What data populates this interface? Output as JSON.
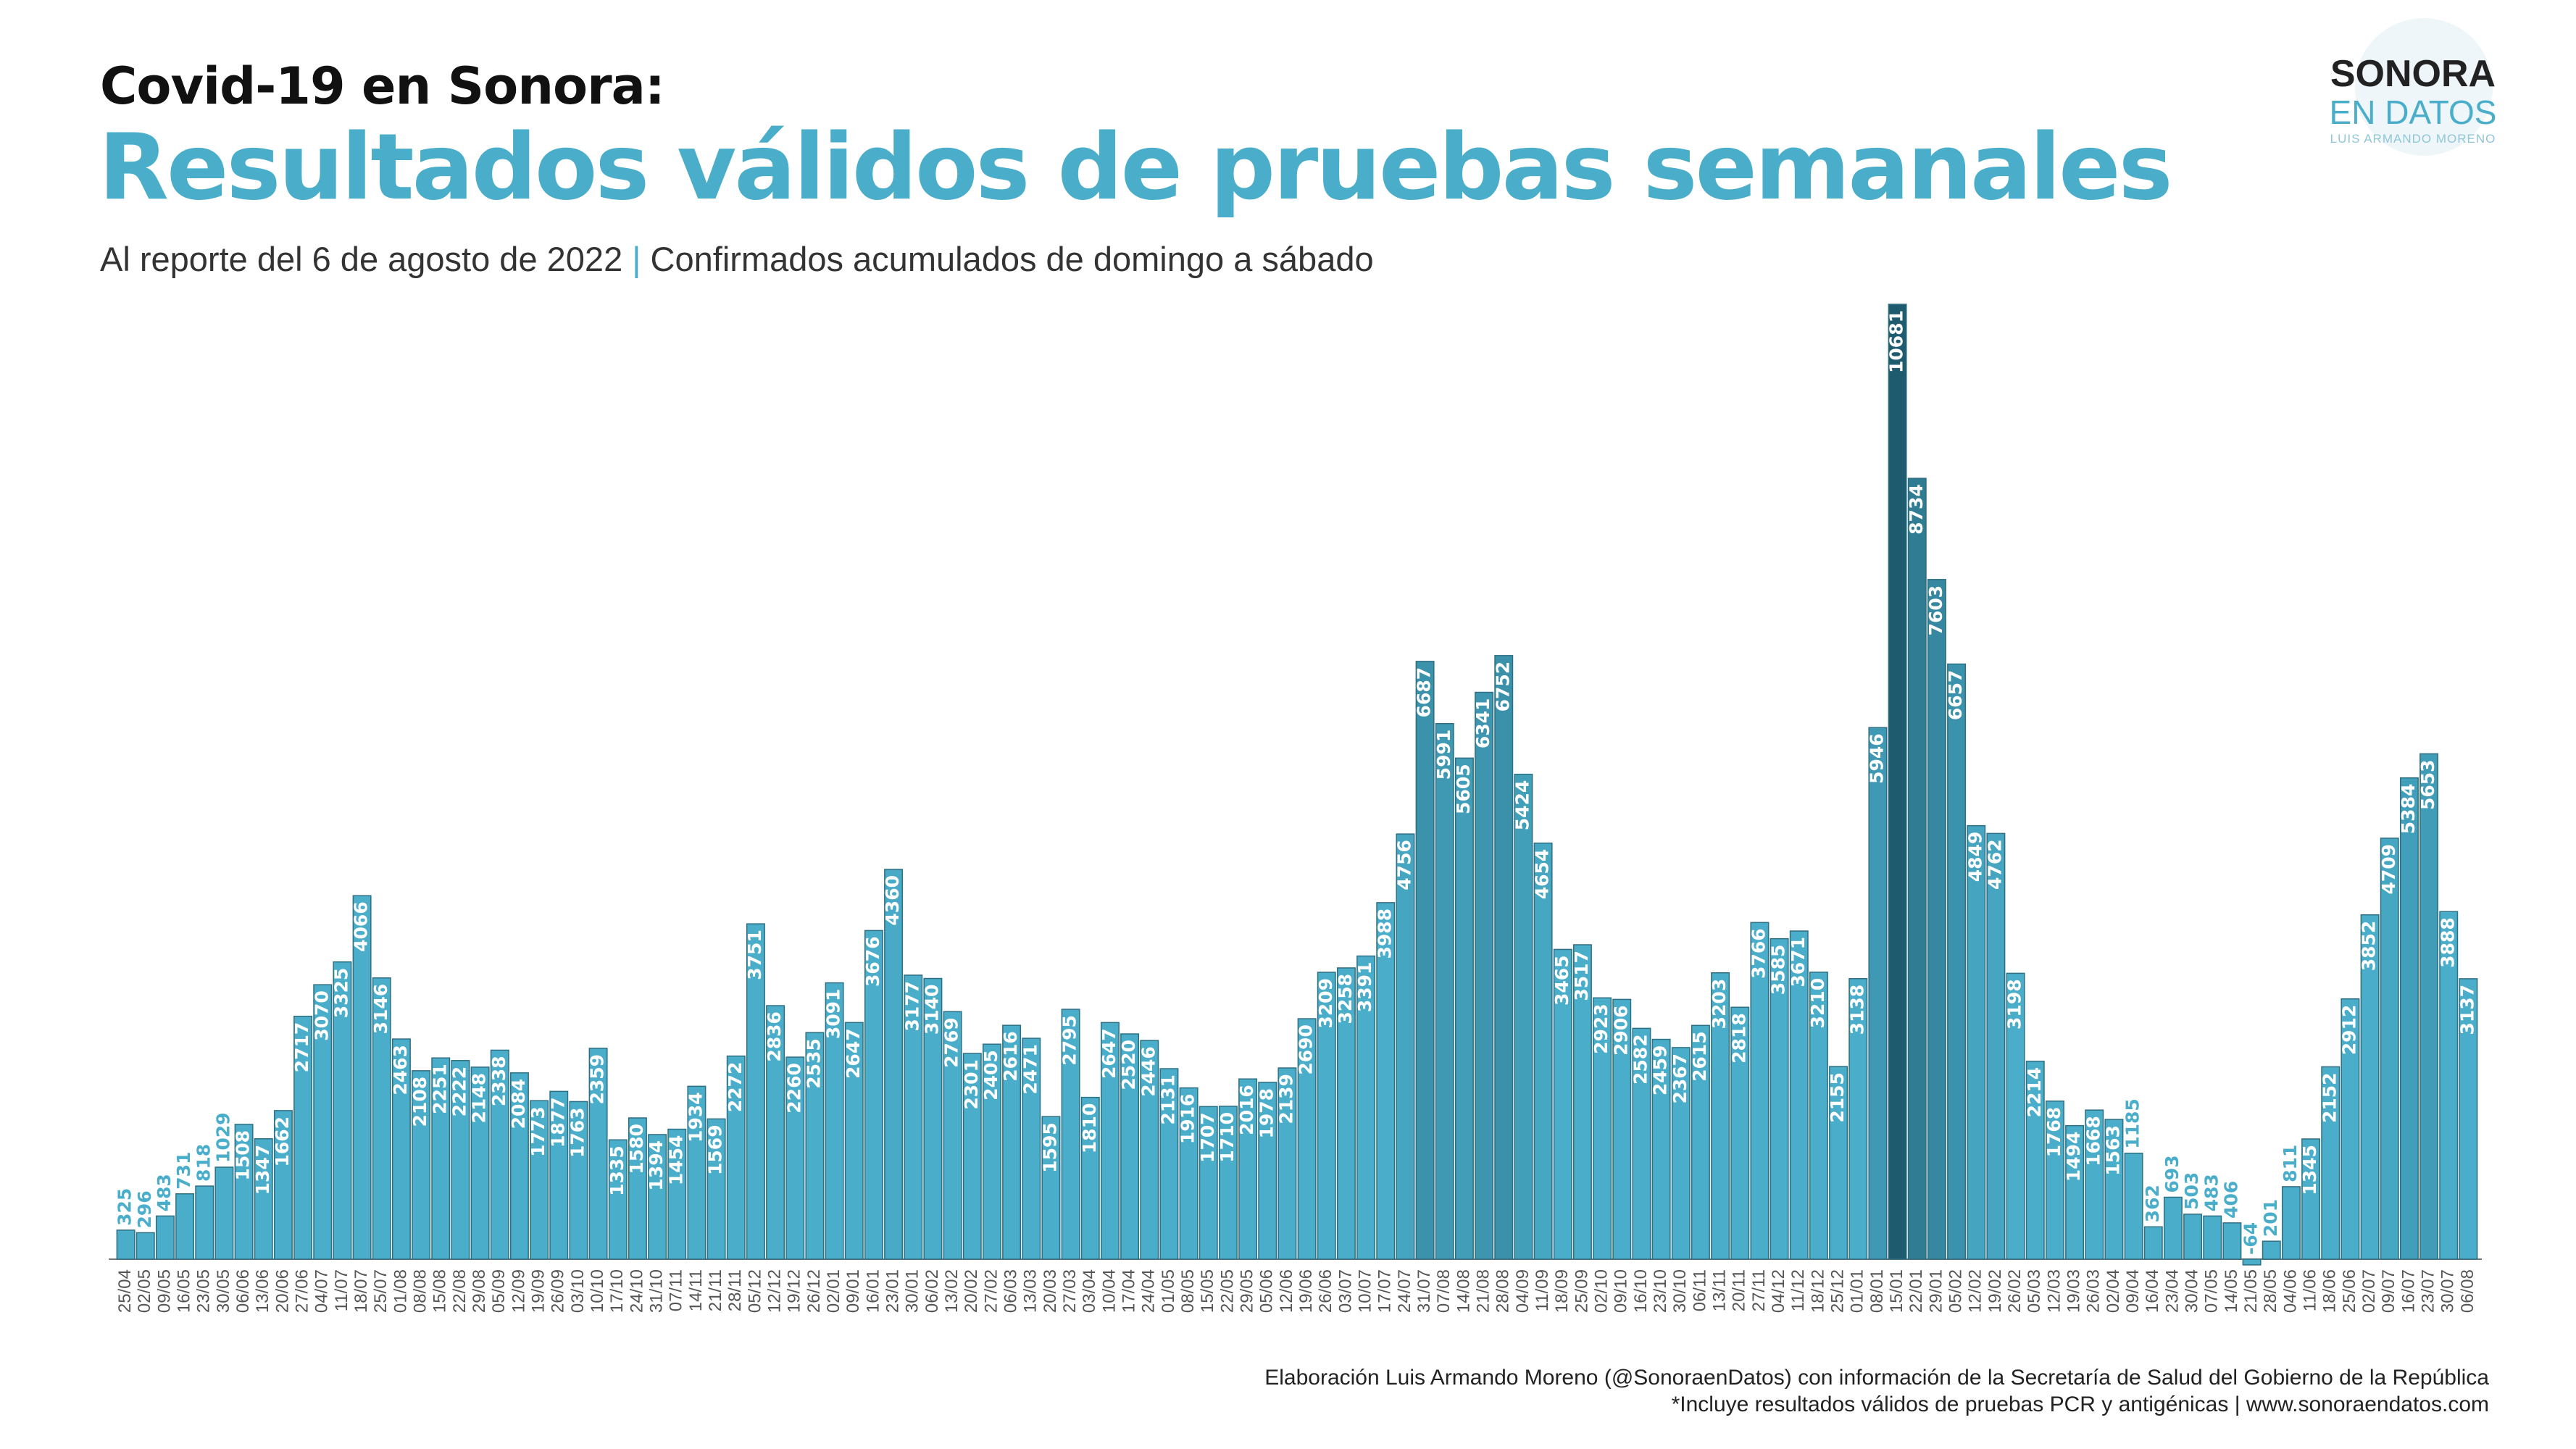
{
  "header": {
    "title_line1": "Covid-19  en Sonora:",
    "title_line2": "Resultados válidos de pruebas semanales",
    "subtitle_left": "Al reporte del 6 de agosto de 2022",
    "subtitle_sep": "|",
    "subtitle_right": "Confirmados acumulados de domingo a sábado"
  },
  "logo": {
    "line1": "SONORA",
    "line2": "EN DATOS",
    "line3": "LUIS ARMANDO MORENO"
  },
  "footer": {
    "credit": "Elaboración Luis Armando Moreno (@SonoraenDatos) con información de la Secretaría de Salud del Gobierno de la República",
    "note": "*Incluye resultados válidos de pruebas PCR y antigénicas | www.sonoraendatos.com"
  },
  "colors": {
    "bar": "#4aaecb",
    "bar_dark": "#1e5b6e",
    "bar_outline": "#2f6f82",
    "title_accent": "#4aaecb"
  },
  "chart_data": {
    "type": "bar",
    "xlabels": [
      "25/04",
      "02/05",
      "09/05",
      "16/05",
      "23/05",
      "30/05",
      "06/06",
      "13/06",
      "20/06",
      "27/06",
      "04/07",
      "11/07",
      "18/07",
      "25/07",
      "01/08",
      "08/08",
      "15/08",
      "22/08",
      "29/08",
      "05/09",
      "12/09",
      "19/09",
      "26/09",
      "03/10",
      "10/10",
      "17/10",
      "24/10",
      "31/10",
      "07/11",
      "14/11",
      "21/11",
      "28/11",
      "05/12",
      "12/12",
      "19/12",
      "26/12",
      "02/01",
      "09/01",
      "16/01",
      "23/01",
      "30/01",
      "06/02",
      "13/02",
      "20/02",
      "27/02",
      "06/03",
      "13/03",
      "20/03",
      "27/03",
      "03/04",
      "10/04",
      "17/04",
      "24/04",
      "01/05",
      "08/05",
      "15/05",
      "22/05",
      "29/05",
      "05/06",
      "12/06",
      "19/06",
      "26/06",
      "03/07",
      "10/07",
      "17/07",
      "24/07",
      "31/07",
      "07/08",
      "14/08",
      "21/08",
      "28/08",
      "04/09",
      "11/09",
      "18/09",
      "25/09",
      "02/10",
      "09/10",
      "16/10",
      "23/10",
      "30/10",
      "06/11",
      "13/11",
      "20/11",
      "27/11",
      "04/12",
      "11/12",
      "18/12",
      "25/12",
      "01/01",
      "08/01",
      "15/01",
      "22/01",
      "29/01",
      "05/02",
      "12/02",
      "19/02",
      "26/02",
      "05/03",
      "12/03",
      "19/03",
      "26/03",
      "02/04",
      "09/04",
      "16/04",
      "23/04",
      "30/04",
      "07/05",
      "14/05",
      "21/05",
      "28/05",
      "04/06",
      "11/06",
      "18/06",
      "25/06",
      "02/07",
      "09/07",
      "16/07",
      "23/07",
      "30/07",
      "06/08"
    ],
    "values": [
      325,
      296,
      483,
      731,
      818,
      1029,
      1508,
      1347,
      1662,
      2717,
      3070,
      3325,
      4066,
      3146,
      2463,
      2108,
      2251,
      2222,
      2148,
      2338,
      2084,
      1773,
      1877,
      1763,
      2359,
      1335,
      1580,
      1394,
      1454,
      1934,
      1569,
      2272,
      3751,
      2836,
      2260,
      2535,
      3091,
      2647,
      3676,
      4360,
      3177,
      3140,
      2769,
      2301,
      2405,
      2616,
      2471,
      1595,
      2795,
      1810,
      2647,
      2520,
      2446,
      2131,
      1916,
      1707,
      1710,
      2016,
      1978,
      2139,
      2690,
      3209,
      3258,
      3391,
      3988,
      4756,
      6687,
      5991,
      5605,
      6341,
      6752,
      5424,
      4654,
      3465,
      3517,
      2923,
      2906,
      2582,
      2459,
      2367,
      2615,
      3203,
      2818,
      3766,
      3585,
      3671,
      3210,
      2155,
      3138,
      5946,
      10681,
      8734,
      7603,
      6657,
      4849,
      4762,
      3198,
      2214,
      1768,
      1494,
      1668,
      1563,
      1185,
      362,
      693,
      503,
      483,
      406,
      -64,
      201,
      811,
      1345,
      2152,
      2912,
      3852,
      4709,
      5384,
      5653,
      3888,
      3137
    ],
    "highlight_index": 90,
    "ylim": [
      -64,
      10681
    ]
  }
}
